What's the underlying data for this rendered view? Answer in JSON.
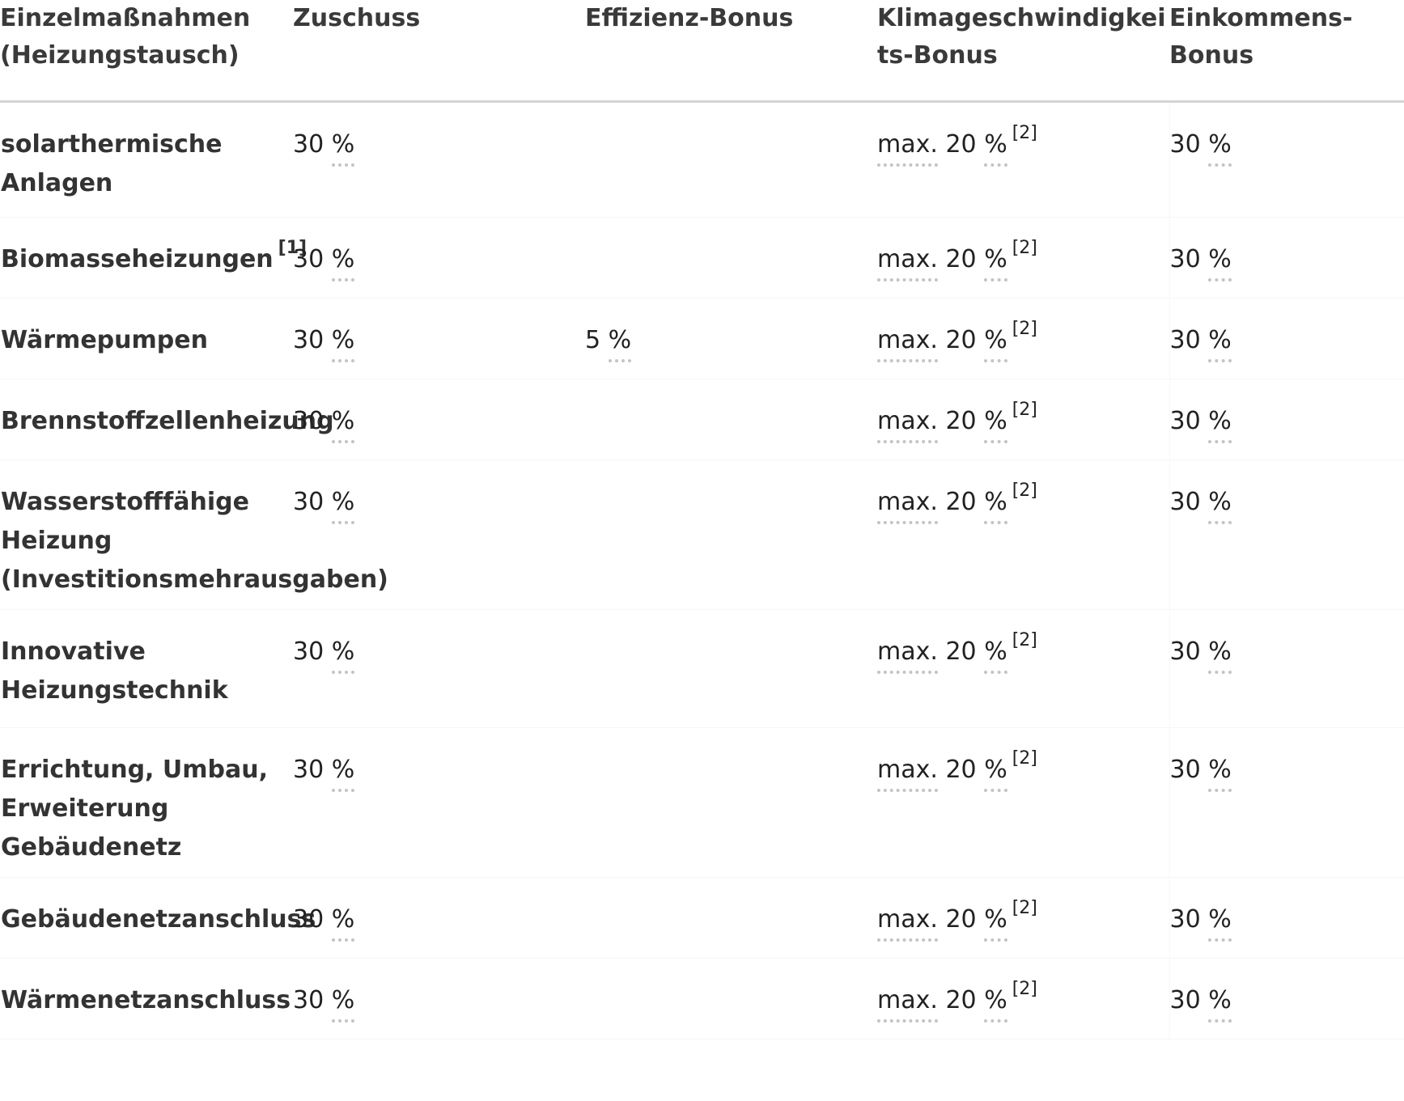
{
  "table": {
    "headers": [
      "Einzelmaßnahmen (Heizungstausch)",
      "Zuschuss",
      "Effizienz-Bonus",
      "Klimageschwindigkeits-Bonus",
      "Einkommens-Bonus"
    ],
    "abbr": {
      "percent": "%",
      "max": "max."
    },
    "rows": [
      {
        "label": "solarthermische Anlagen",
        "label_fn": "",
        "zuschuss": "30",
        "effizienz": "",
        "klima": "20",
        "klima_fn": "[2]",
        "einkommen": "30"
      },
      {
        "label": "Biomasseheizungen",
        "label_fn": "[1]",
        "zuschuss": "30",
        "effizienz": "",
        "klima": "20",
        "klima_fn": "[2]",
        "einkommen": "30"
      },
      {
        "label": "Wärmepumpen",
        "label_fn": "",
        "zuschuss": "30",
        "effizienz": "5",
        "klima": "20",
        "klima_fn": "[2]",
        "einkommen": "30"
      },
      {
        "label": "Brennstoffzellenheizung",
        "label_fn": "",
        "zuschuss": "30",
        "effizienz": "",
        "klima": "20",
        "klima_fn": "[2]",
        "einkommen": "30"
      },
      {
        "label": "Wasserstofffähige Heizung (Investitionsmehrausgaben)",
        "label_fn": "",
        "zuschuss": "30",
        "effizienz": "",
        "klima": "20",
        "klima_fn": "[2]",
        "einkommen": "30"
      },
      {
        "label": "Innovative Heizungstechnik",
        "label_fn": "",
        "zuschuss": "30",
        "effizienz": "",
        "klima": "20",
        "klima_fn": "[2]",
        "einkommen": "30"
      },
      {
        "label": "Errichtung, Umbau, Erweiterung Gebäudenetz",
        "label_fn": "",
        "zuschuss": "30",
        "effizienz": "",
        "klima": "20",
        "klima_fn": "[2]",
        "einkommen": "30"
      },
      {
        "label": "Gebäudenetzanschluss",
        "label_fn": "",
        "zuschuss": "30",
        "effizienz": "",
        "klima": "20",
        "klima_fn": "[2]",
        "einkommen": "30"
      },
      {
        "label": "Wärmenetzanschluss",
        "label_fn": "",
        "zuschuss": "30",
        "effizienz": "",
        "klima": "20",
        "klima_fn": "[2]",
        "einkommen": "30"
      }
    ]
  }
}
